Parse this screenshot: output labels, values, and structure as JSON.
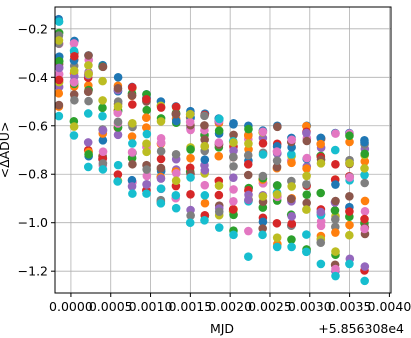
{
  "chart_data": {
    "type": "scatter",
    "title": "",
    "xlabel": "MJD",
    "ylabel": "<ΔADU>",
    "x_offset_label": "+5.856308e4",
    "xlim": [
      -0.0002,
      0.00402
    ],
    "ylim": [
      -1.29,
      -0.11
    ],
    "x_tick_labels": [
      "0.0000",
      "0.0005",
      "0.0010",
      "0.0015",
      "0.0020",
      "0.0025",
      "0.0030",
      "0.0035",
      "0.0040"
    ],
    "x_ticks": [
      0.0,
      0.0005,
      0.001,
      0.0015,
      0.002,
      0.0025,
      0.003,
      0.0035,
      0.004
    ],
    "y_tick_labels": [
      "−1.2",
      "−1.0",
      "−0.8",
      "−0.6",
      "−0.4",
      "−0.2"
    ],
    "y_ticks": [
      -1.2,
      -1.0,
      -0.8,
      -0.6,
      -0.4,
      -0.2
    ],
    "grid": true,
    "legend": "none",
    "x": [
      -0.00015,
      4e-05,
      0.00022,
      0.0004,
      0.00059,
      0.00077,
      0.00095,
      0.00113,
      0.00132,
      0.0015,
      0.00168,
      0.00186,
      0.00204,
      0.00223,
      0.00241,
      0.00259,
      0.00277,
      0.00296,
      0.00314,
      0.00332,
      0.0035,
      0.00369
    ],
    "y_top": [
      -0.16,
      -0.25,
      -0.31,
      -0.35,
      -0.4,
      -0.44,
      -0.47,
      -0.5,
      -0.52,
      -0.54,
      -0.55,
      -0.57,
      -0.59,
      -0.6,
      -0.62,
      -0.6,
      -0.65,
      -0.6,
      -0.65,
      -0.63,
      -0.63,
      -0.66
    ],
    "y_bottom": [
      -0.56,
      -0.64,
      -0.77,
      -0.78,
      -0.83,
      -0.88,
      -0.88,
      -0.92,
      -0.94,
      -1.0,
      -0.99,
      -1.02,
      -1.05,
      -1.14,
      -1.05,
      -1.1,
      -1.1,
      -1.12,
      -1.17,
      -1.22,
      -1.17,
      -1.24
    ],
    "points_per_x": 20,
    "series_colors": [
      "#1f77b4",
      "#ff7f0e",
      "#2ca02c",
      "#d62728",
      "#9467bd",
      "#8c564b",
      "#e377c2",
      "#7f7f7f",
      "#bcbd22",
      "#17becf"
    ]
  }
}
